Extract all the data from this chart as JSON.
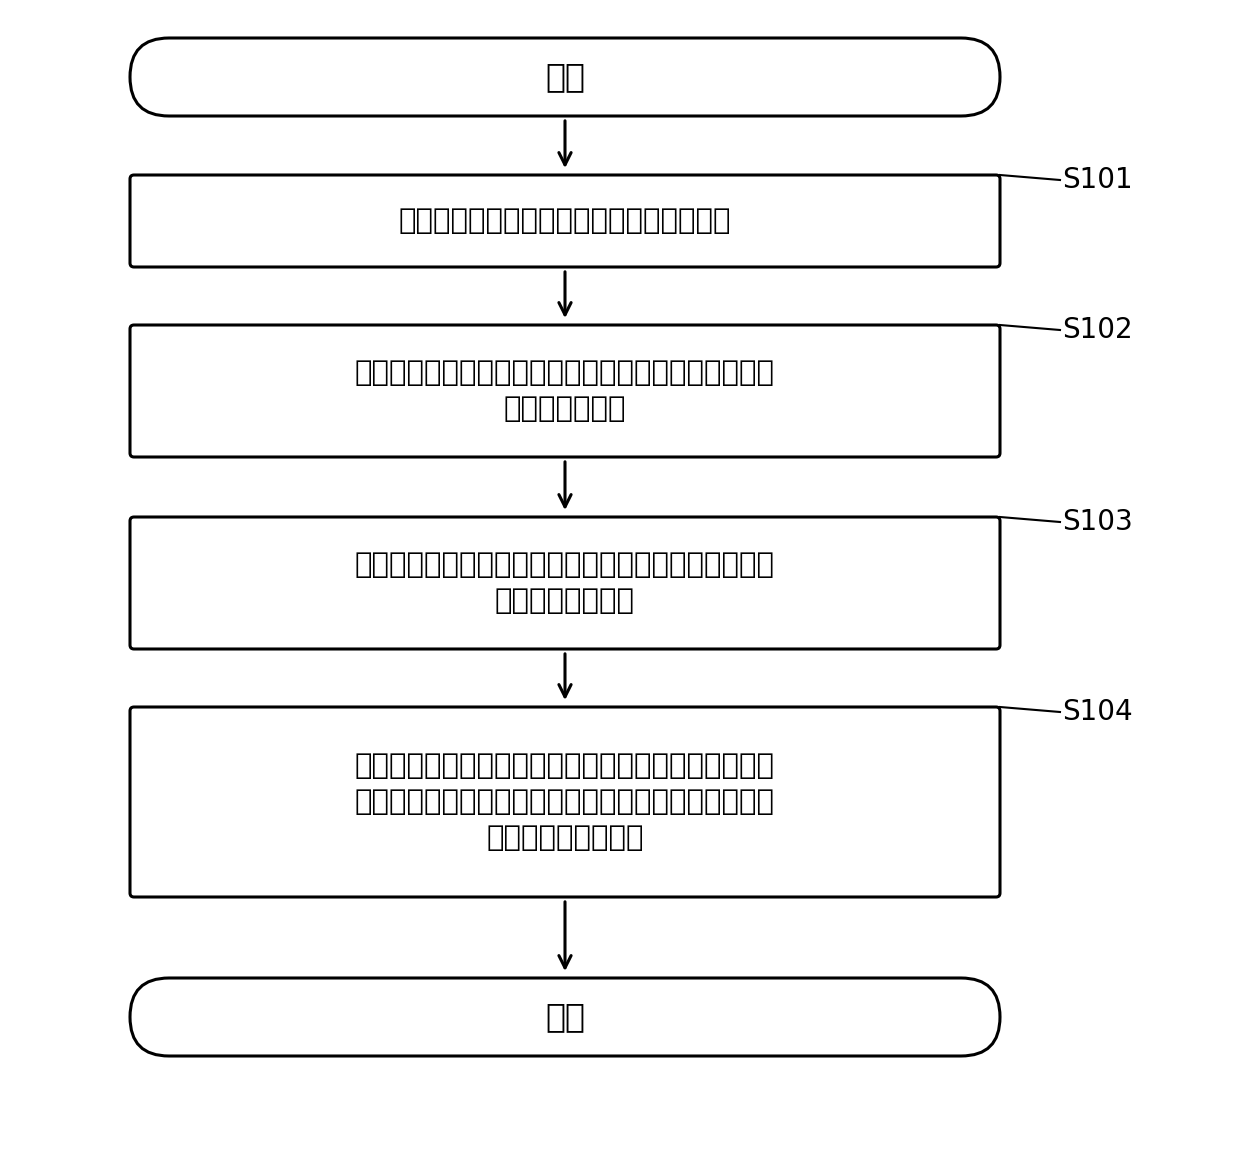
{
  "background_color": "#ffffff",
  "text_font_size": 21,
  "label_font_size": 19,
  "step_font_size": 20,
  "box_edge_color": "#000000",
  "box_fill_color": "#ffffff",
  "arrow_color": "#000000",
  "text_color": "#000000",
  "start_end_text": [
    "开始",
    "结束"
  ],
  "steps": [
    {
      "label": "S101",
      "lines": [
        "根据电动车辆的所有行驶工况构建复合工况"
      ]
    },
    {
      "label": "S102",
      "lines": [
        "搞建所述电动车辆的仿真模型，并根据所述仿真模型确",
        "定扔矩解析公式"
      ]
    },
    {
      "label": "S103",
      "lines": [
        "根据输出扔矩与续驶里程的对应关系和所述扔矩解析公",
        "式得到待优化函数"
      ]
    },
    {
      "label": "S104",
      "lines": [
        "在所述复合工况下对所述待优化函数进行优化处理得到",
        "最大续驶里程对应的优选参数，以便根据所述优选参数",
        "输出对应的电机扔矩"
      ]
    }
  ]
}
